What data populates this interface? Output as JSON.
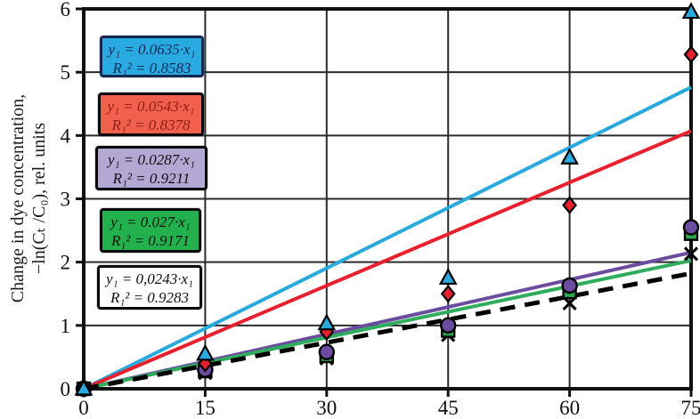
{
  "chart_data": {
    "type": "scatter",
    "title": "",
    "xlabel": "",
    "ylabel_line1": "Change in dye concentration,",
    "ylabel_line2": "−ln(Cₜ /C₀), rel. units",
    "xlim": [
      0,
      75
    ],
    "ylim": [
      0,
      6
    ],
    "x_ticks": [
      0,
      15,
      30,
      45,
      60,
      75
    ],
    "y_ticks": [
      0,
      1,
      2,
      3,
      4,
      5,
      6
    ],
    "grid": true,
    "x": [
      0,
      15,
      30,
      45,
      60,
      75
    ],
    "series": [
      {
        "name": "series-1-triangle",
        "marker": "triangle",
        "color": "#29A9DC",
        "values": [
          0,
          0.55,
          1.03,
          1.75,
          3.65,
          5.95
        ],
        "trend_slope": 0.0635,
        "trend_style": "solid",
        "trend_color": "#29A9DC"
      },
      {
        "name": "series-2-diamond",
        "marker": "diamond",
        "color": "#E8202E",
        "values": [
          0,
          0.4,
          0.9,
          1.5,
          2.9,
          5.28
        ],
        "trend_slope": 0.0543,
        "trend_style": "solid",
        "trend_color": "#E8202E"
      },
      {
        "name": "series-3-circle",
        "marker": "circle",
        "color": "#6B4C9F",
        "values": [
          0,
          0.3,
          0.58,
          1.0,
          1.63,
          2.55
        ],
        "trend_slope": 0.0287,
        "trend_style": "solid",
        "trend_color": "#6B4C9F"
      },
      {
        "name": "series-4-square",
        "marker": "square",
        "color": "#2BA84F",
        "values": [
          0,
          0.28,
          0.52,
          0.92,
          1.53,
          2.45
        ],
        "trend_slope": 0.027,
        "trend_style": "solid",
        "trend_color": "#2FAD5C"
      },
      {
        "name": "series-5-x",
        "marker": "x",
        "color": "#000000",
        "values": [
          0,
          0.25,
          0.48,
          0.85,
          1.35,
          2.13
        ],
        "trend_slope": 0.0243,
        "trend_style": "dashed",
        "trend_color": "#000000"
      }
    ],
    "legend_boxes": [
      {
        "eq": "y₁ = 0.0635·x₁",
        "r2": "R₁² = 0.8583",
        "bg": "#29ABE2",
        "border": "#152A52",
        "text_color": "#152A52"
      },
      {
        "eq": "y₁ = 0.0543·x₁",
        "r2": "R₁² = 0.8378",
        "bg": "#F1604D",
        "border": "#0a0a0a",
        "text_color": "#8C1D12"
      },
      {
        "eq": "y₁ = 0.0287·x₁",
        "r2": "R₁² = 0.9211",
        "bg": "#B3A7D3",
        "border": "#0a0a0a",
        "text_color": "#111111"
      },
      {
        "eq": "y₁ = 0.027·x₁",
        "r2": "R₁² = 0.9171",
        "bg": "#22B14C",
        "border": "#0a0a0a",
        "text_color": "#111111"
      },
      {
        "eq": "y₁ = 0,0243·x₁",
        "r2": "R₁² = 0.9283",
        "bg": "#FFFFFF",
        "border": "#0a0a0a",
        "text_color": "#111111"
      }
    ],
    "frame_color": "#111111",
    "grid_color": "#2b2b2b"
  }
}
